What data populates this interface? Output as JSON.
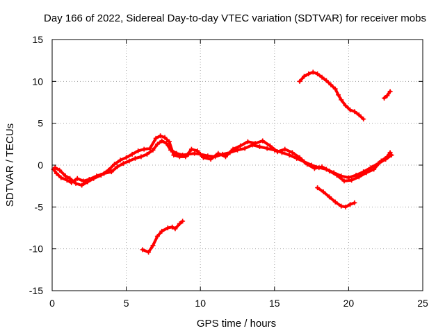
{
  "chart_data": {
    "type": "scatter",
    "title": "Day 166 of 2022, Sidereal Day-to-day VTEC variation (SDTVAR) for receiver mobs",
    "xlabel": "GPS time / hours",
    "ylabel": "SDTVAR / TECUs",
    "xlim": [
      0,
      25
    ],
    "ylim": [
      -15,
      15
    ],
    "xticks": [
      0,
      5,
      10,
      15,
      20,
      25
    ],
    "yticks": [
      -15,
      -10,
      -5,
      0,
      5,
      10,
      15
    ],
    "xtick_labels": [
      "0",
      "5",
      "10",
      "15",
      "20",
      "25"
    ],
    "ytick_labels": [
      "-15",
      "-10",
      "-5",
      "0",
      "5",
      "10",
      "15"
    ],
    "grid": true,
    "series_color": "#ff0000",
    "series": [
      {
        "name": "main-track-a",
        "points": [
          [
            0.1,
            -0.5
          ],
          [
            0.3,
            -1.0
          ],
          [
            0.6,
            -1.5
          ],
          [
            1.0,
            -1.8
          ],
          [
            1.3,
            -2.1
          ],
          [
            1.7,
            -1.6
          ],
          [
            2.1,
            -1.9
          ],
          [
            2.5,
            -1.7
          ],
          [
            3.0,
            -1.3
          ],
          [
            3.5,
            -1.0
          ],
          [
            4.0,
            -0.8
          ],
          [
            4.4,
            -0.2
          ],
          [
            4.8,
            0.2
          ],
          [
            5.2,
            0.5
          ],
          [
            5.6,
            0.8
          ],
          [
            6.0,
            1.0
          ],
          [
            6.4,
            1.3
          ],
          [
            6.8,
            1.8
          ],
          [
            7.1,
            2.5
          ],
          [
            7.4,
            2.9
          ],
          [
            7.7,
            2.6
          ],
          [
            8.0,
            1.8
          ],
          [
            8.4,
            1.4
          ],
          [
            8.8,
            1.2
          ],
          [
            9.2,
            1.3
          ],
          [
            9.6,
            1.4
          ],
          [
            10.0,
            1.3
          ],
          [
            10.5,
            1.1
          ],
          [
            11.0,
            1.0
          ],
          [
            11.5,
            1.3
          ],
          [
            12.0,
            1.5
          ],
          [
            12.5,
            1.8
          ],
          [
            13.0,
            2.0
          ],
          [
            13.5,
            2.4
          ],
          [
            14.0,
            2.2
          ],
          [
            14.5,
            2.0
          ],
          [
            15.0,
            1.8
          ],
          [
            15.5,
            1.5
          ],
          [
            16.0,
            1.2
          ],
          [
            16.5,
            0.8
          ],
          [
            17.0,
            0.4
          ],
          [
            17.5,
            0.0
          ],
          [
            18.0,
            -0.3
          ],
          [
            18.5,
            -0.5
          ],
          [
            19.0,
            -0.9
          ],
          [
            19.5,
            -1.3
          ],
          [
            20.0,
            -1.5
          ],
          [
            20.5,
            -1.2
          ],
          [
            21.0,
            -0.8
          ],
          [
            21.5,
            -0.3
          ],
          [
            22.0,
            0.2
          ],
          [
            22.5,
            0.7
          ],
          [
            22.9,
            1.2
          ]
        ]
      },
      {
        "name": "main-track-b",
        "points": [
          [
            0.2,
            -0.3
          ],
          [
            0.5,
            -0.6
          ],
          [
            0.9,
            -1.3
          ],
          [
            1.2,
            -1.6
          ],
          [
            1.6,
            -2.2
          ],
          [
            2.0,
            -2.4
          ],
          [
            2.4,
            -2.0
          ],
          [
            2.8,
            -1.6
          ],
          [
            3.3,
            -1.2
          ],
          [
            3.8,
            -0.6
          ],
          [
            4.2,
            0.1
          ],
          [
            4.6,
            0.6
          ],
          [
            5.0,
            0.9
          ],
          [
            5.4,
            1.3
          ],
          [
            5.8,
            1.7
          ],
          [
            6.2,
            1.9
          ],
          [
            6.6,
            2.0
          ],
          [
            7.0,
            3.2
          ],
          [
            7.3,
            3.5
          ],
          [
            7.6,
            3.3
          ],
          [
            7.9,
            2.8
          ],
          [
            8.2,
            1.2
          ],
          [
            8.6,
            1.0
          ],
          [
            9.0,
            1.0
          ],
          [
            9.4,
            1.9
          ],
          [
            9.8,
            1.7
          ],
          [
            10.2,
            0.9
          ],
          [
            10.7,
            0.7
          ],
          [
            11.2,
            1.4
          ],
          [
            11.7,
            1.0
          ],
          [
            12.2,
            1.9
          ],
          [
            12.7,
            2.3
          ],
          [
            13.2,
            2.8
          ],
          [
            13.7,
            2.6
          ],
          [
            14.2,
            2.9
          ],
          [
            14.7,
            2.3
          ],
          [
            15.2,
            1.6
          ],
          [
            15.7,
            1.9
          ],
          [
            16.2,
            1.5
          ],
          [
            16.7,
            0.9
          ],
          [
            17.2,
            0.1
          ],
          [
            17.7,
            -0.4
          ],
          [
            18.2,
            -0.2
          ],
          [
            18.7,
            -0.7
          ],
          [
            19.2,
            -1.2
          ],
          [
            19.7,
            -1.9
          ],
          [
            20.2,
            -1.8
          ],
          [
            20.7,
            -1.4
          ],
          [
            21.2,
            -0.9
          ],
          [
            21.7,
            -0.5
          ],
          [
            22.2,
            0.5
          ],
          [
            22.6,
            1.0
          ],
          [
            22.8,
            1.5
          ]
        ]
      },
      {
        "name": "upper-track",
        "points": [
          [
            16.7,
            10.0
          ],
          [
            17.0,
            10.6
          ],
          [
            17.3,
            10.9
          ],
          [
            17.6,
            11.1
          ],
          [
            17.9,
            10.9
          ],
          [
            18.2,
            10.5
          ],
          [
            18.5,
            10.1
          ],
          [
            18.8,
            9.6
          ],
          [
            19.1,
            9.1
          ],
          [
            19.3,
            8.4
          ],
          [
            19.5,
            7.8
          ],
          [
            19.8,
            7.1
          ],
          [
            20.1,
            6.6
          ],
          [
            20.4,
            6.4
          ],
          [
            20.7,
            6.0
          ],
          [
            21.0,
            5.5
          ]
        ]
      },
      {
        "name": "upper-right-track",
        "points": [
          [
            22.4,
            8.0
          ],
          [
            22.6,
            8.3
          ],
          [
            22.8,
            8.8
          ]
        ]
      },
      {
        "name": "lower-right-track",
        "points": [
          [
            17.9,
            -2.7
          ],
          [
            18.3,
            -3.2
          ],
          [
            18.7,
            -3.8
          ],
          [
            19.1,
            -4.4
          ],
          [
            19.5,
            -4.9
          ],
          [
            19.8,
            -5.0
          ],
          [
            20.1,
            -4.7
          ],
          [
            20.4,
            -4.5
          ]
        ]
      },
      {
        "name": "lower-left-track",
        "points": [
          [
            6.1,
            -10.1
          ],
          [
            6.5,
            -10.4
          ],
          [
            6.8,
            -9.6
          ],
          [
            7.1,
            -8.5
          ],
          [
            7.4,
            -7.9
          ],
          [
            7.8,
            -7.5
          ],
          [
            8.1,
            -7.4
          ],
          [
            8.3,
            -7.6
          ],
          [
            8.6,
            -7.0
          ],
          [
            8.8,
            -6.7
          ]
        ]
      }
    ]
  }
}
